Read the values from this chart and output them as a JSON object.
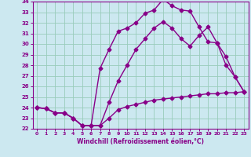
{
  "title": "",
  "xlabel": "Windchill (Refroidissement éolien,°C)",
  "bg_color": "#cce8f0",
  "grid_color": "#99ccbb",
  "line_color": "#880088",
  "xlim": [
    -0.5,
    23.5
  ],
  "ylim": [
    22,
    34
  ],
  "xticks": [
    0,
    1,
    2,
    3,
    4,
    5,
    6,
    7,
    8,
    9,
    10,
    11,
    12,
    13,
    14,
    15,
    16,
    17,
    18,
    19,
    20,
    21,
    22,
    23
  ],
  "yticks": [
    22,
    23,
    24,
    25,
    26,
    27,
    28,
    29,
    30,
    31,
    32,
    33,
    34
  ],
  "line1_y": [
    24.0,
    23.9,
    23.5,
    23.5,
    23.0,
    22.3,
    22.3,
    22.3,
    23.0,
    23.8,
    24.1,
    24.3,
    24.5,
    24.7,
    24.8,
    24.9,
    25.0,
    25.1,
    25.2,
    25.3,
    25.3,
    25.4,
    25.4,
    25.5
  ],
  "line2_y": [
    24.0,
    23.9,
    23.5,
    23.5,
    23.0,
    22.3,
    22.3,
    27.7,
    29.5,
    31.2,
    31.5,
    32.0,
    32.9,
    33.2,
    34.2,
    33.6,
    33.2,
    33.1,
    31.6,
    30.2,
    30.1,
    28.8,
    26.9,
    25.5
  ],
  "line3_y": [
    24.0,
    23.9,
    23.5,
    23.5,
    23.0,
    22.3,
    22.3,
    22.3,
    24.5,
    26.5,
    28.0,
    29.5,
    30.5,
    31.5,
    32.1,
    31.5,
    30.5,
    29.8,
    30.8,
    31.6,
    30.1,
    28.0,
    26.9,
    25.5
  ],
  "marker": "D",
  "markersize": 2.5,
  "linewidth": 1.0
}
